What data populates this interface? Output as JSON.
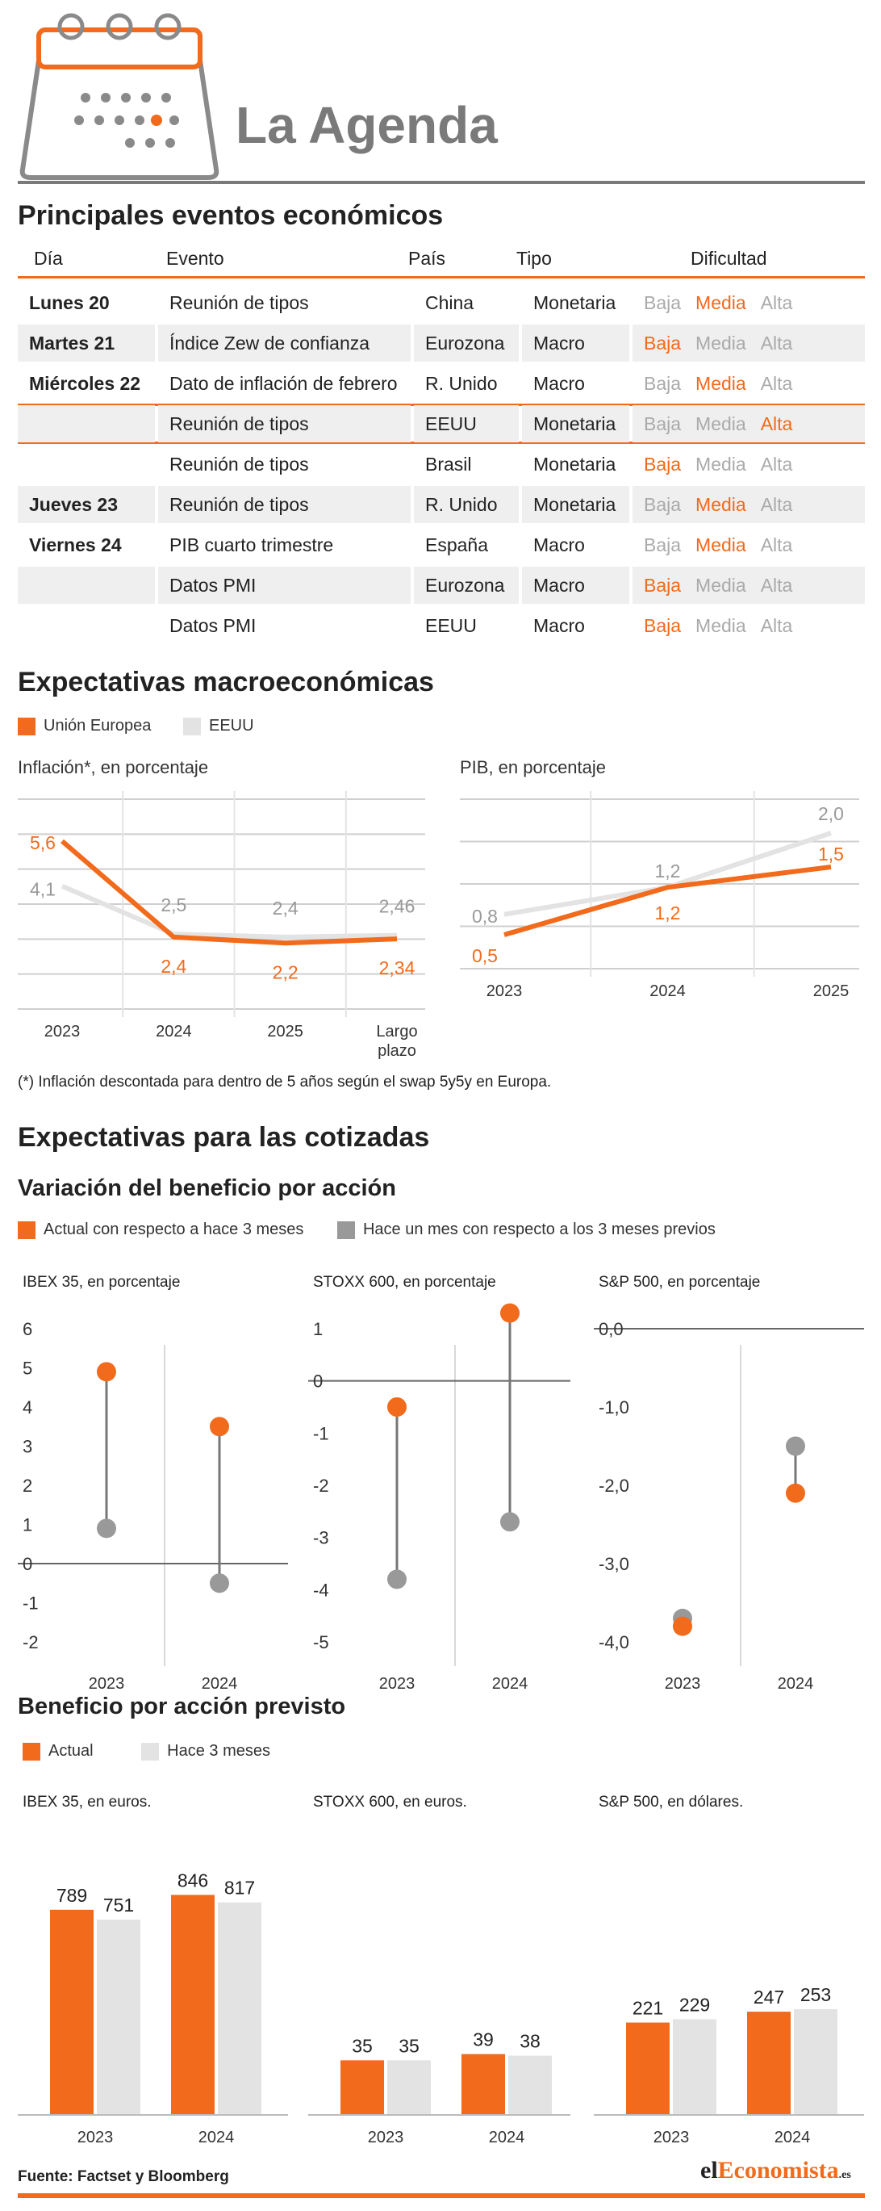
{
  "header": {
    "title": "La Agenda"
  },
  "colors": {
    "accent": "#f26a1b",
    "grey_dark": "#999999",
    "grey_light": "#e3e3e3",
    "text": "#222222"
  },
  "events": {
    "title": "Principales eventos económicos",
    "columns": [
      "Día",
      "Evento",
      "País",
      "Tipo",
      "Dificultad"
    ],
    "difficulty_levels": [
      "Baja",
      "Media",
      "Alta"
    ],
    "rows": [
      {
        "day": "Lunes 20",
        "event": "Reunión de tipos",
        "country": "China",
        "type": "Monetaria",
        "difficulty": "Media"
      },
      {
        "day": "Martes 21",
        "event": "Índice Zew de confianza",
        "country": "Eurozona",
        "type": "Macro",
        "difficulty": "Baja"
      },
      {
        "day": "Miércoles 22",
        "event": "Dato de inflación de febrero",
        "country": "R. Unido",
        "type": "Macro",
        "difficulty": "Media"
      },
      {
        "day": "",
        "event": "Reunión de tipos",
        "country": "EEUU",
        "type": "Monetaria",
        "difficulty": "Alta",
        "highlight": true
      },
      {
        "day": "",
        "event": "Reunión de tipos",
        "country": "Brasil",
        "type": "Monetaria",
        "difficulty": "Baja"
      },
      {
        "day": "Jueves 23",
        "event": "Reunión de tipos",
        "country": "R. Unido",
        "type": "Monetaria",
        "difficulty": "Media"
      },
      {
        "day": "Viernes 24",
        "event": "PIB cuarto trimestre",
        "country": "España",
        "type": "Macro",
        "difficulty": "Media"
      },
      {
        "day": "",
        "event": "Datos PMI",
        "country": "Eurozona",
        "type": "Macro",
        "difficulty": "Baja"
      },
      {
        "day": "",
        "event": "Datos PMI",
        "country": "EEUU",
        "type": "Macro",
        "difficulty": "Baja"
      }
    ]
  },
  "macro": {
    "title": "Expectativas macroeconómicas",
    "legend": [
      "Unión Europea",
      "EEUU"
    ],
    "note": "(*) Inflación descontada para dentro de 5 años según el swap 5y5y en Europa."
  },
  "stocks": {
    "title": "Expectativas para las cotizadas",
    "eps_change_title": "Variación del beneficio por acción",
    "eps_change_legend": [
      "Actual con respecto a hace 3 meses",
      "Hace un mes con respecto a los 3 meses previos"
    ],
    "eps_forecast_title": "Beneficio por acción previsto",
    "eps_forecast_legend": [
      "Actual",
      "Hace 3 meses"
    ]
  },
  "footer": {
    "source": "Fuente: Factset y Bloomberg",
    "brand_a": "el",
    "brand_b": "Economista",
    "brand_c": ".es"
  },
  "chart_data": [
    {
      "type": "line",
      "title": "Inflación*, en porcentaje",
      "categories": [
        "2023",
        "2024",
        "2025",
        "Largo plazo"
      ],
      "series": [
        {
          "name": "Unión Europea",
          "values": [
            5.6,
            2.4,
            2.2,
            2.34
          ],
          "labels": [
            "5,6",
            "2,4",
            "2,2",
            "2,34"
          ]
        },
        {
          "name": "EEUU",
          "values": [
            4.1,
            2.5,
            2.4,
            2.46
          ],
          "labels": [
            "4,1",
            "2,5",
            "2,4",
            "2,46"
          ]
        }
      ],
      "ylim": [
        0,
        7
      ]
    },
    {
      "type": "line",
      "title": "PIB, en porcentaje",
      "categories": [
        "2023",
        "2024",
        "2025"
      ],
      "series": [
        {
          "name": "Unión Europea",
          "values": [
            0.5,
            1.2,
            1.5
          ],
          "labels": [
            "0,5",
            "1,2",
            "1,5"
          ]
        },
        {
          "name": "EEUU",
          "values": [
            0.8,
            1.2,
            2.0
          ],
          "labels": [
            "0,8",
            "1,2",
            "2,0"
          ]
        }
      ],
      "ylim": [
        0,
        2.5
      ]
    },
    {
      "type": "scatter",
      "title": "IBEX 35, en porcentaje",
      "categories": [
        "2023",
        "2024"
      ],
      "series": [
        {
          "name": "Actual con respecto a hace 3 meses",
          "values": [
            4.9,
            3.5
          ]
        },
        {
          "name": "Hace un mes con respecto a los 3 meses previos",
          "values": [
            0.9,
            -0.5
          ]
        }
      ],
      "yticks": [
        "6",
        "5",
        "4",
        "3",
        "2",
        "1",
        "0",
        "-1",
        "-2"
      ],
      "ylim": [
        -2,
        6
      ]
    },
    {
      "type": "scatter",
      "title": "STOXX 600, en porcentaje",
      "categories": [
        "2023",
        "2024"
      ],
      "series": [
        {
          "name": "Actual con respecto a hace 3 meses",
          "values": [
            -0.5,
            1.3
          ]
        },
        {
          "name": "Hace un mes con respecto a los 3 meses previos",
          "values": [
            -3.8,
            -2.7
          ]
        }
      ],
      "yticks": [
        "1",
        "0",
        "-1",
        "-2",
        "-3",
        "-4",
        "-5"
      ],
      "ylim": [
        -5,
        1
      ]
    },
    {
      "type": "scatter",
      "title": "S&P 500, en porcentaje",
      "categories": [
        "2023",
        "2024"
      ],
      "series": [
        {
          "name": "Actual con respecto a hace 3 meses",
          "values": [
            -3.8,
            -2.1
          ]
        },
        {
          "name": "Hace un mes con respecto a los 3 meses previos",
          "values": [
            -3.7,
            -1.5
          ]
        }
      ],
      "yticks": [
        "0,0",
        "-1,0",
        "-2,0",
        "-3,0",
        "-4,0"
      ],
      "ylim": [
        -4,
        0
      ]
    },
    {
      "type": "bar",
      "title": "IBEX 35, en euros.",
      "categories": [
        "2023",
        "2024"
      ],
      "series": [
        {
          "name": "Actual",
          "values": [
            789,
            846
          ]
        },
        {
          "name": "Hace 3 meses",
          "values": [
            751,
            817
          ]
        }
      ]
    },
    {
      "type": "bar",
      "title": "STOXX 600, en euros.",
      "categories": [
        "2023",
        "2024"
      ],
      "series": [
        {
          "name": "Actual",
          "values": [
            35,
            39
          ]
        },
        {
          "name": "Hace 3 meses",
          "values": [
            35,
            38
          ]
        }
      ]
    },
    {
      "type": "bar",
      "title": "S&P 500, en dólares.",
      "categories": [
        "2023",
        "2024"
      ],
      "series": [
        {
          "name": "Actual",
          "values": [
            221,
            247
          ]
        },
        {
          "name": "Hace 3 meses",
          "values": [
            229,
            253
          ]
        }
      ]
    }
  ]
}
